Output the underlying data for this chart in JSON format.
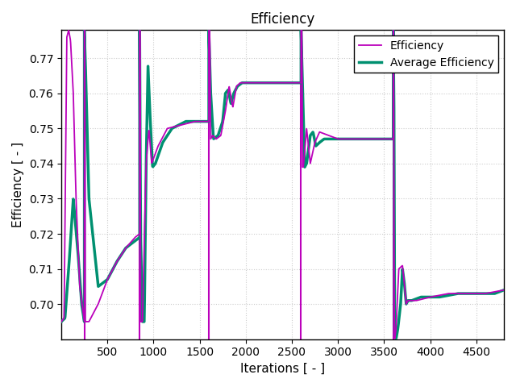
{
  "title": "Efficiency",
  "xlabel": "Iterations [ - ]",
  "ylabel": "Efficiency [ - ]",
  "xlim": [
    0,
    4800
  ],
  "ylim": [
    0.69,
    0.778
  ],
  "yticks": [
    0.7,
    0.71,
    0.72,
    0.73,
    0.74,
    0.75,
    0.76,
    0.77
  ],
  "xticks": [
    500,
    1000,
    1500,
    2000,
    2500,
    3000,
    3500,
    4000,
    4500
  ],
  "efficiency_color": "#bb00bb",
  "avg_efficiency_color": "#009070",
  "efficiency_linewidth": 1.3,
  "avg_efficiency_linewidth": 2.5,
  "vline_color": "#bb00bb",
  "vline_linewidth": 1.5,
  "vline_positions": [
    250,
    850,
    1600,
    2600,
    3600
  ],
  "grid_color": "#cccccc",
  "grid_linestyle": ":",
  "background_color": "#ffffff",
  "legend_entries": [
    "Efficiency",
    "Average Efficiency"
  ],
  "title_fontsize": 12,
  "axis_label_fontsize": 11,
  "tick_fontsize": 10,
  "legend_fontsize": 10
}
